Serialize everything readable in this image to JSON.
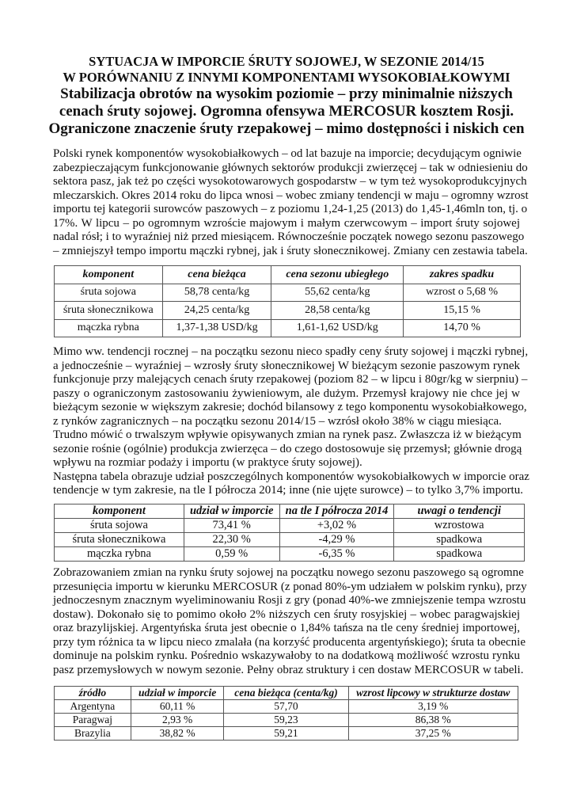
{
  "title": {
    "lines": [
      "SYTUACJA W IMPORCIE ŚRUTY SOJOWEJ,  W SEZONIE 2014/15",
      "W PORÓWNANIU Z INNYMI KOMPONENTAMI WYSOKOBIAŁKOWYMI"
    ],
    "subtitle": [
      "Stabilizacja obrotów na wysokim poziomie – przy minimalnie niższych",
      "cenach śruty sojowej. Ogromna ofensywa MERCOSUR kosztem Rosji.",
      "Ograniczone znaczenie śruty rzepakowej – mimo dostępności i niskich cen"
    ]
  },
  "paragraphs": [
    [
      "Polski rynek komponentów wysokobiałkowych – od lat bazuje na imporcie; decydującym ogniwie",
      "zabezpieczającym funkcjonowanie głównych sektorów produkcji zwierzęcej – tak w odniesieniu do",
      "sektora pasz, jak też po części wysokotowarowych gospodarstw – w tym też wysokoprodukcyjnych",
      "mleczarskich. Okres 2014 roku do lipca wnosi – wobec zmiany tendencji w maju – ogromny wzrost",
      "importu tej kategorii surowców paszowych – z poziomu 1,24-1,25 (2013) do 1,45-1,46mln ton, tj. o",
      "17%. W lipcu – po ogromnym wzroście majowym i małym czerwcowym – import śruty sojowej",
      "nadal rósł; i to wyraźniej niż przed miesiącem. Równocześnie początek nowego sezonu paszowego",
      "– zmniejszył tempo importu mączki rybnej, jak i śruty słonecznikowej. Zmiany cen zestawia tabela."
    ],
    [
      "Mimo ww. tendencji rocznej – na początku sezonu nieco spadły ceny śruty sojowej i mączki rybnej,",
      "a jednocześnie – wyraźniej – wzrosły śruty słonecznikowej W bieżącym sezonie paszowym rynek",
      "funkcjonuje przy malejących cenach śruty rzepakowej (poziom 82 – w lipcu i 80gr/kg w sierpniu) –",
      "paszy o ograniczonym zastosowaniu żywieniowym, ale dużym. Przemysł krajowy nie chce jej w",
      "bieżącym sezonie w większym zakresie; dochód bilansowy z tego komponentu wysokobiałkowego,",
      "z rynków zagranicznych – na początku sezonu 2014/15 – wzrósł około 38% w ciągu miesiąca."
    ],
    [
      "Trudno mówić o trwalszym wpływie opisywanych zmian na rynek pasz. Zwłaszcza iż w bieżącym",
      "sezonie rośnie (ogólnie) produkcja zwierzęca – do czego dostosowuje się przemysł; głównie drogą",
      "wpływu na rozmiar podaży i importu (w praktyce śruty sojowej).",
      "Następna tabela obrazuje udział poszczególnych komponentów wysokobiałkowych w imporcie oraz",
      "tendencje w tym zakresie, na tle I półrocza 2014; inne (nie ujęte surowce) – to tylko 3,7% importu."
    ],
    [
      "Zobrazowaniem zmian na rynku śruty sojowej na początku nowego sezonu paszowego są ogromne",
      "przesunięcia importu w kierunku MERCOSUR (z ponad 80%-ym udziałem w polskim rynku), przy",
      "jednoczesnym znacznym wyeliminowaniu Rosji z gry (ponad 40%-we zmniejszenie tempa wzrostu",
      "dostaw). Dokonało się to pomimo około 2% niższych cen śruty rosyjskiej – wobec paragwajskiej",
      "oraz brazylijskiej. Argentyńska śruta jest obecnie o 1,84% tańsza na tle ceny średniej importowej,",
      "przy tym różnica ta w lipcu nieco zmalała (na korzyść producenta argentyńskiego); śruta ta obecnie",
      "dominuje na polskim rynku. Pośrednio wskazywałoby to na dodatkową możliwość wzrostu rynku",
      "pasz przemysłowych w nowym sezonie. Pełny obraz struktury i cen dostaw MERCOSUR w tabeli."
    ]
  ],
  "last_line_index": {
    "p0": [
      7
    ],
    "p1": [
      5
    ],
    "p2": [
      2,
      4
    ],
    "p3": [
      7
    ]
  },
  "tables": [
    {
      "headers": [
        "komponent",
        "cena bieżąca",
        "cena sezonu ubiegłego",
        "zakres spadku"
      ],
      "rows": [
        [
          "śruta sojowa",
          "58,78 centa/kg",
          "55,62 centa/kg",
          "wzrost o 5,68 %"
        ],
        [
          "śruta słonecznikowa",
          "24,25 centa/kg",
          "28,58 centa/kg",
          "15,15 %"
        ],
        [
          "mączka rybna",
          "1,37-1,38 USD/kg",
          "1,61-1,62 USD/kg",
          "14,70 %"
        ]
      ]
    },
    {
      "headers": [
        "komponent",
        "udział w imporcie",
        "na tle I półrocza 2014",
        "uwagi o tendencji"
      ],
      "rows": [
        [
          "śruta sojowa",
          "73,41 %",
          "+3,02 %",
          "wzrostowa"
        ],
        [
          "śruta słonecznikowa",
          "22,30 %",
          "-4,29 %",
          "spadkowa"
        ],
        [
          "mączka rybna",
          "0,59 %",
          "-6,35 %",
          "spadkowa"
        ]
      ]
    },
    {
      "headers": [
        "źródło",
        "udział w imporcie",
        "cena bieżąca (centa/kg)",
        "wzrost lipcowy w strukturze dostaw"
      ],
      "rows": [
        [
          "Argentyna",
          "60,11 %",
          "57,70",
          "3,19 %"
        ],
        [
          "Paragwaj",
          "2,93 %",
          "59,23",
          "86,38 %"
        ],
        [
          "Brazylia",
          "38,82 %",
          "59,21",
          "37,25 %"
        ]
      ]
    }
  ]
}
